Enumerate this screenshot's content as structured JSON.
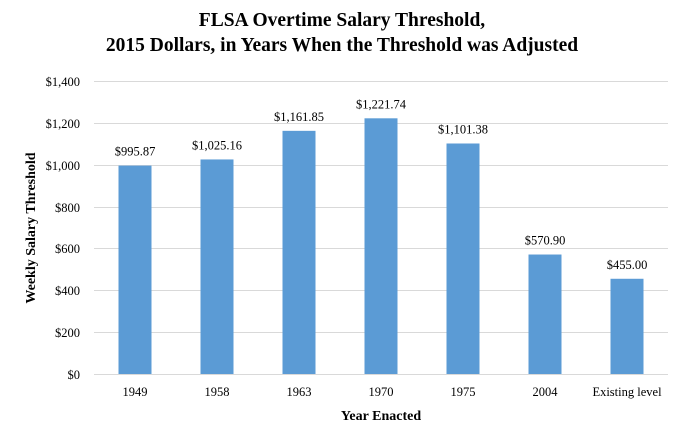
{
  "chart_data": {
    "type": "bar",
    "title": "FLSA Overtime Salary Threshold,",
    "subtitle": "2015 Dollars, in Years When the Threshold was Adjusted",
    "xlabel": "Year Enacted",
    "ylabel": "Weekly Salary Threshold",
    "categories": [
      "1949",
      "1958",
      "1963",
      "1970",
      "1975",
      "2004",
      "Existing level"
    ],
    "values": [
      995.87,
      1025.16,
      1161.85,
      1221.74,
      1101.38,
      570.9,
      455.0
    ],
    "data_labels": [
      "$995.87",
      "$1,025.16",
      "$1,161.85",
      "$1,221.74",
      "$1,101.38",
      "$570.90",
      "$455.00"
    ],
    "ylim": [
      0,
      1400
    ],
    "yticks": [
      0,
      200,
      400,
      600,
      800,
      1000,
      1200,
      1400
    ],
    "ytick_labels": [
      "$0",
      "$200",
      "$400",
      "$600",
      "$800",
      "$1,000",
      "$1,200",
      "$1,400"
    ],
    "grid": true,
    "legend": "none",
    "bar_color": "#5B9BD5",
    "grid_color": "#D9D9D9"
  }
}
